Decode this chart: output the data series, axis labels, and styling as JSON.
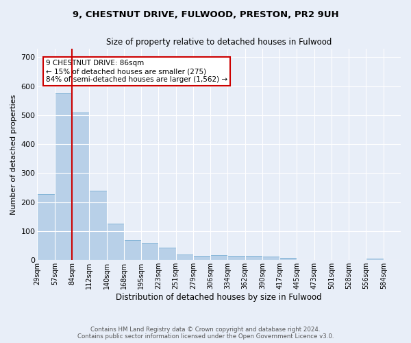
{
  "title_line1": "9, CHESTNUT DRIVE, FULWOOD, PRESTON, PR2 9UH",
  "title_line2": "Size of property relative to detached houses in Fulwood",
  "xlabel": "Distribution of detached houses by size in Fulwood",
  "ylabel": "Number of detached properties",
  "footer_line1": "Contains HM Land Registry data © Crown copyright and database right 2024.",
  "footer_line2": "Contains public sector information licensed under the Open Government Licence v3.0.",
  "annotation_line1": "9 CHESTNUT DRIVE: 86sqm",
  "annotation_line2": "← 15% of detached houses are smaller (275)",
  "annotation_line3": "84% of semi-detached houses are larger (1,562) →",
  "bar_color": "#b8d0e8",
  "bar_edge_color": "#7aafd4",
  "highlight_line_color": "#cc0000",
  "highlight_bar_index": 2,
  "categories": [
    "29sqm",
    "57sqm",
    "84sqm",
    "112sqm",
    "140sqm",
    "168sqm",
    "195sqm",
    "223sqm",
    "251sqm",
    "279sqm",
    "306sqm",
    "334sqm",
    "362sqm",
    "390sqm",
    "417sqm",
    "445sqm",
    "473sqm",
    "501sqm",
    "528sqm",
    "556sqm",
    "584sqm"
  ],
  "values": [
    228,
    575,
    510,
    240,
    125,
    70,
    60,
    43,
    20,
    14,
    18,
    15,
    14,
    12,
    8,
    0,
    0,
    0,
    0,
    5,
    0
  ],
  "ylim": [
    0,
    730
  ],
  "yticks": [
    0,
    100,
    200,
    300,
    400,
    500,
    600,
    700
  ],
  "bg_color": "#e8eef8",
  "plot_bg_color": "#e8eef8",
  "grid_color": "#ffffff",
  "annotation_box_color": "#ffffff",
  "annotation_box_edge": "#cc0000"
}
